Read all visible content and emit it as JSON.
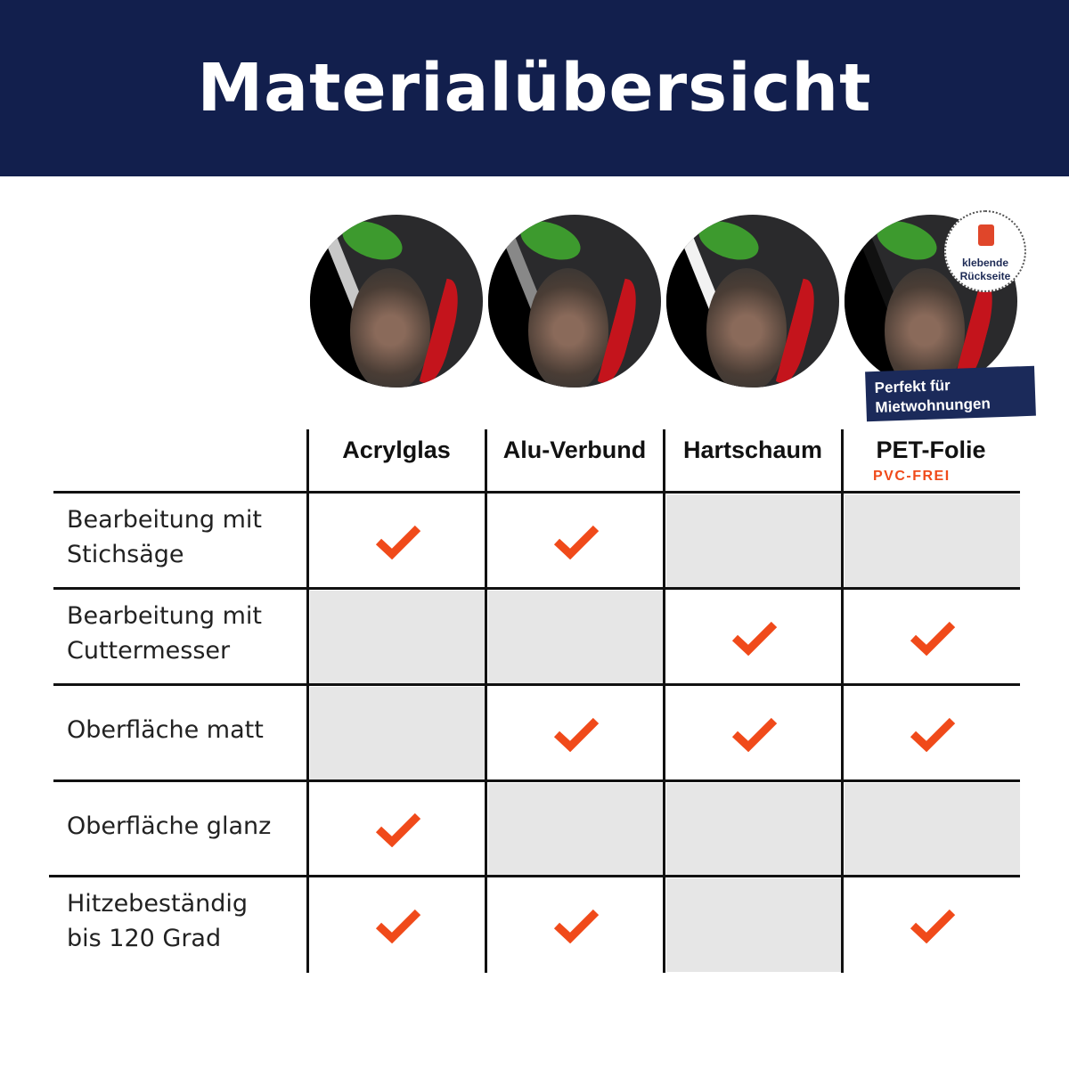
{
  "title": "Materialübersicht",
  "badge": {
    "label_line1": "klebende",
    "label_line2": "Rückseite",
    "icon": "adhesive-peel-icon"
  },
  "ribbon": {
    "line1": "Perfekt für",
    "line2": "Mietwohnungen"
  },
  "columns": [
    {
      "label": "Acrylglas"
    },
    {
      "label": "Alu-Verbund"
    },
    {
      "label": "Hartschaum"
    },
    {
      "label": "PET-Folie",
      "sublabel": "PVC-FREI"
    }
  ],
  "rows": [
    {
      "label_line1": "Bearbeitung mit",
      "label_line2": "Stichsäge",
      "values": [
        true,
        true,
        false,
        false
      ]
    },
    {
      "label_line1": "Bearbeitung mit",
      "label_line2": "Cuttermesser",
      "values": [
        false,
        false,
        true,
        true
      ]
    },
    {
      "label_line1": "Oberfläche matt",
      "label_line2": "",
      "values": [
        false,
        true,
        true,
        true
      ]
    },
    {
      "label_line1": "Oberfläche glanz",
      "label_line2": "",
      "values": [
        true,
        false,
        false,
        false
      ]
    },
    {
      "label_line1": "Hitzebeständig",
      "label_line2": "bis 120 Grad",
      "values": [
        true,
        true,
        false,
        true
      ]
    }
  ],
  "colors": {
    "header": "#121f4d",
    "check": "#f04a1a",
    "unavailable_cell": "#e6e6e6",
    "accent": "#f04a1a"
  }
}
